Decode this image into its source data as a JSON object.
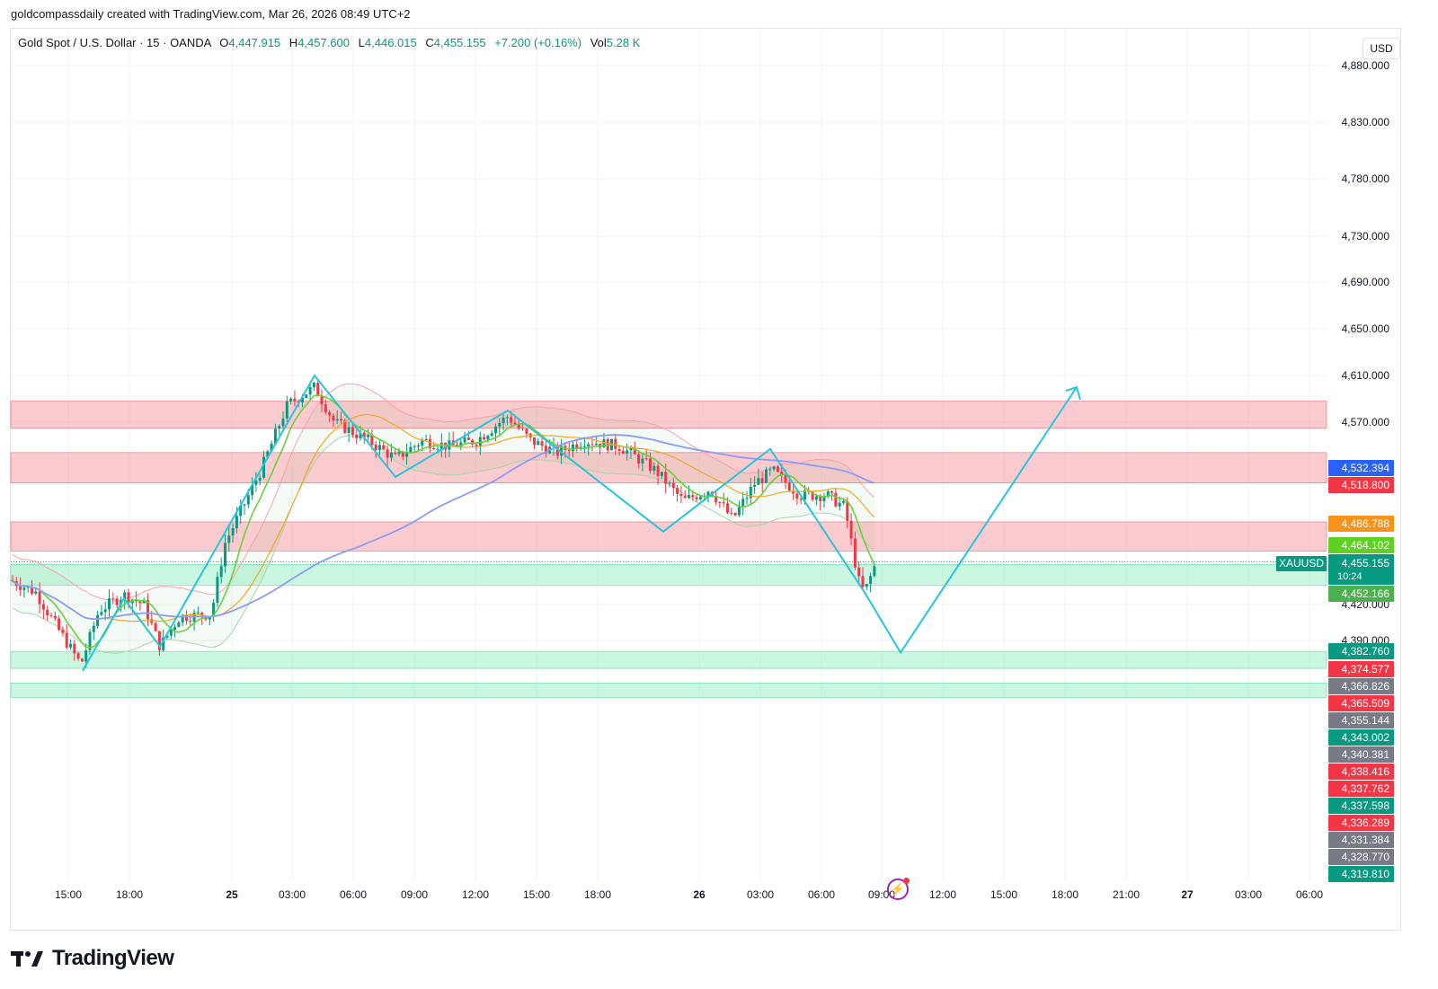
{
  "attribution": "goldcompassdaily created with TradingView.com, Mar 26, 2026 08:49 UTC+2",
  "legend": {
    "symbol": "Gold Spot / U.S. Dollar · 15 · OANDA",
    "open_label": "O",
    "open": "4,447.915",
    "high_label": "H",
    "high": "4,457.600",
    "low_label": "L",
    "low": "4,446.015",
    "close_label": "C",
    "close": "4,455.155",
    "change": "+7.200 (+0.16%)",
    "vol_label": "Vol",
    "vol": "5.28 K"
  },
  "currency": "USD",
  "brand": "TradingView",
  "colors": {
    "up": "#089981",
    "down": "#f23645",
    "resistance_zone": "#f7a1a7",
    "support_zone": "#9ef0c8",
    "projection": "#26c6da",
    "ema_fast": "#66d13a",
    "ema_slow": "#f5a623",
    "sma_long": "#8c9cf5"
  },
  "chart_data": {
    "type": "candlestick",
    "symbol": "XAUUSD",
    "interval": "15",
    "y_axis": {
      "ticks": [
        "4,880.000",
        "4,830.000",
        "4,780.000",
        "4,730.000",
        "4,690.000",
        "4,650.000",
        "4,610.000",
        "4,570.000",
        "4,420.000",
        "4,390.000"
      ],
      "scale": "nonlinear",
      "tick_values": [
        4880,
        4830,
        4780,
        4730,
        4690,
        4650,
        4610,
        4570,
        4420,
        4390
      ]
    },
    "x_axis": {
      "ticks": [
        {
          "label": "15:00",
          "bold": false
        },
        {
          "label": "18:00",
          "bold": false
        },
        {
          "label": "25",
          "bold": true
        },
        {
          "label": "03:00",
          "bold": false
        },
        {
          "label": "06:00",
          "bold": false
        },
        {
          "label": "09:00",
          "bold": false
        },
        {
          "label": "12:00",
          "bold": false
        },
        {
          "label": "15:00",
          "bold": false
        },
        {
          "label": "18:00",
          "bold": false
        },
        {
          "label": "26",
          "bold": true
        },
        {
          "label": "03:00",
          "bold": false
        },
        {
          "label": "06:00",
          "bold": false
        },
        {
          "label": "09:00",
          "bold": false
        },
        {
          "label": "12:00",
          "bold": false
        },
        {
          "label": "15:00",
          "bold": false
        },
        {
          "label": "18:00",
          "bold": false
        },
        {
          "label": "21:00",
          "bold": false
        },
        {
          "label": "27",
          "bold": true
        },
        {
          "label": "03:00",
          "bold": false
        },
        {
          "label": "06:00",
          "bold": false
        }
      ]
    },
    "price_labels": [
      {
        "text": "4,532.394",
        "color": "#2962ff"
      },
      {
        "text": "4,518.800",
        "color": "#f23645"
      },
      {
        "text": "4,486.788",
        "color": "#f7931a"
      },
      {
        "text": "4,464.102",
        "color": "#5fd122"
      },
      {
        "text": "4,455.155",
        "color": "#089981",
        "extra": "10:24",
        "tag": "XAUUSD"
      },
      {
        "text": "4,452.166",
        "color": "#4caf50"
      },
      {
        "text": "4,382.760",
        "color": "#089981"
      },
      {
        "text": "4,374.577",
        "color": "#f23645"
      },
      {
        "text": "4,366.826",
        "color": "#787b86"
      },
      {
        "text": "4,365.509",
        "color": "#f23645"
      },
      {
        "text": "4,355.144",
        "color": "#787b86"
      },
      {
        "text": "4,343.002",
        "color": "#089981"
      },
      {
        "text": "4,340.381",
        "color": "#787b86"
      },
      {
        "text": "4,338.416",
        "color": "#f23645"
      },
      {
        "text": "4,337.762",
        "color": "#f23645"
      },
      {
        "text": "4,337.598",
        "color": "#089981"
      },
      {
        "text": "4,336.289",
        "color": "#f23645"
      },
      {
        "text": "4,331.384",
        "color": "#787b86"
      },
      {
        "text": "4,328.770",
        "color": "#787b86"
      },
      {
        "text": "4,319.810",
        "color": "#089981"
      }
    ],
    "zones": [
      {
        "kind": "resistance",
        "from": 4565,
        "to": 4588
      },
      {
        "kind": "resistance",
        "from": 4520,
        "to": 4545
      },
      {
        "kind": "resistance",
        "from": 4464,
        "to": 4488
      },
      {
        "kind": "support",
        "from": 4436,
        "to": 4453
      },
      {
        "kind": "support",
        "from": 4367,
        "to": 4381
      },
      {
        "kind": "support",
        "from": 4343,
        "to": 4355
      }
    ],
    "last_price": 4455.155
  }
}
